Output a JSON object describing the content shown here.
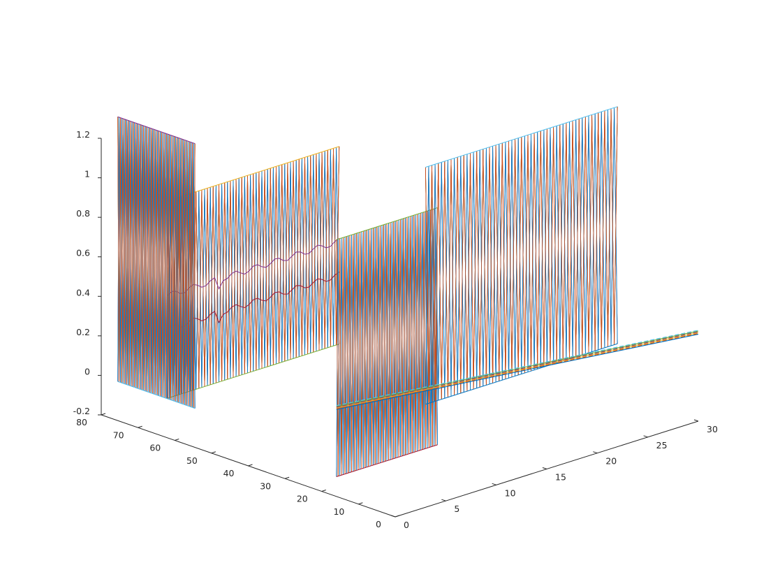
{
  "chart_data": {
    "type": "line",
    "view": "3d",
    "axes": {
      "x": {
        "range": [
          0,
          80
        ],
        "ticks": [
          0,
          10,
          20,
          30,
          40,
          50,
          60,
          70,
          80
        ],
        "tick_labels": [
          "0",
          "10",
          "20",
          "30",
          "40",
          "50",
          "60",
          "70",
          "80"
        ]
      },
      "y": {
        "range": [
          0,
          30
        ],
        "ticks": [
          0,
          5,
          10,
          15,
          20,
          25,
          30
        ],
        "tick_labels": [
          "0",
          "5",
          "10",
          "15",
          "20",
          "25",
          "30"
        ]
      },
      "z": {
        "range": [
          -0.2,
          1.2
        ],
        "ticks": [
          -0.2,
          0,
          0.2,
          0.4,
          0.6,
          0.8,
          1.0,
          1.2
        ],
        "tick_labels": [
          "-0.2",
          "0",
          "0.2",
          "0.4",
          "0.6",
          "0.8",
          "1",
          "1.2"
        ]
      }
    },
    "grid": false,
    "legend": "none",
    "series_colors": [
      "#0072BD",
      "#D95319",
      "#EDB120",
      "#7E2F8E",
      "#77AC30",
      "#4DBEEE",
      "#A2142F"
    ],
    "planes": [
      {
        "name": "",
        "x": [
          62,
          62
        ],
        "y": [
          0,
          17
        ],
        "z": [
          0,
          1
        ]
      },
      {
        "name": "",
        "x": [
          60,
          81
        ],
        "y": [
          2,
          2
        ],
        "z": [
          -0.07,
          1.27
        ]
      },
      {
        "name": "",
        "x": [
          16,
          16
        ],
        "y": [
          0,
          10
        ],
        "z": [
          -0.1,
          1.1
        ]
      },
      {
        "name": "",
        "x": [
          22,
          22
        ],
        "y": [
          11,
          30
        ],
        "z": [
          0.05,
          1.25
        ]
      }
    ],
    "rod": {
      "x": [
        16,
        0
      ],
      "y": [
        0,
        30
      ],
      "z": [
        0.25,
        0.25
      ]
    }
  }
}
